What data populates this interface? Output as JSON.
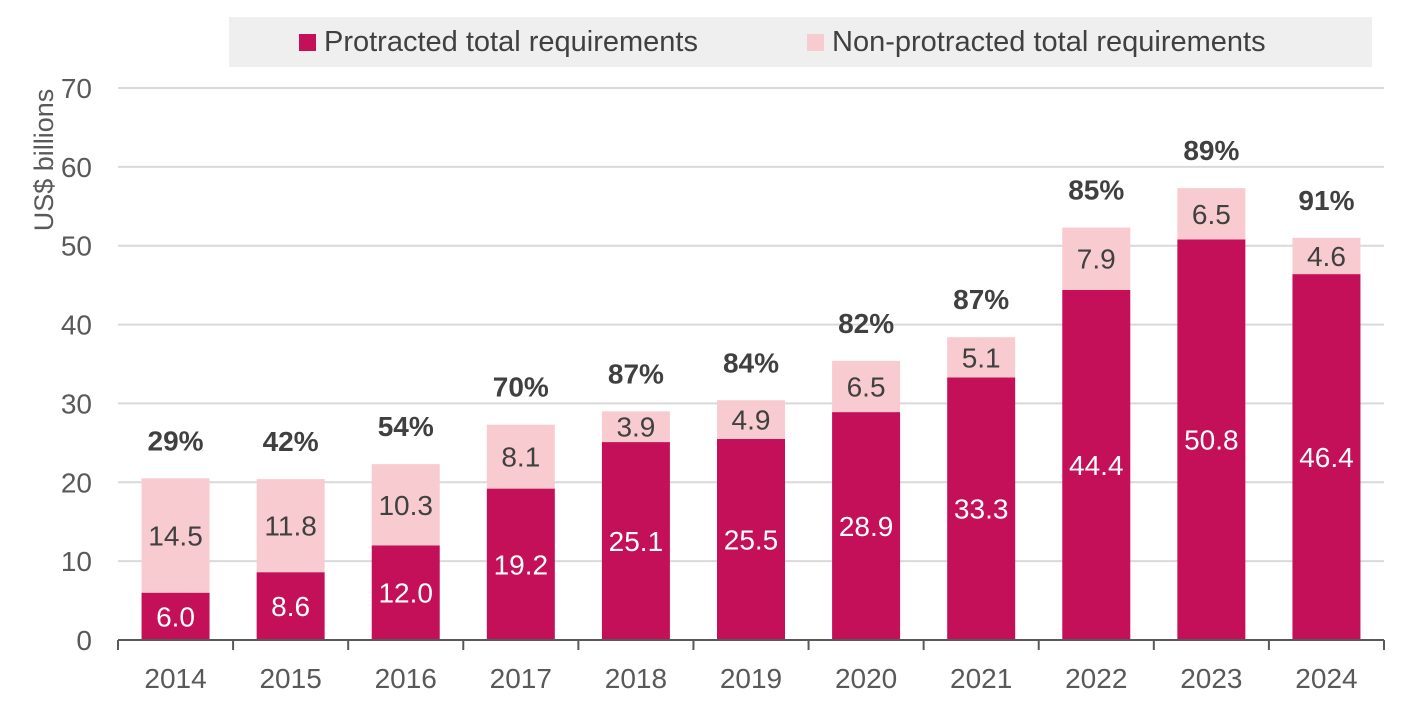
{
  "colors": {
    "protracted": "#c41058",
    "non_protracted": "#f8cbd0",
    "grid": "#d9d9d9",
    "axis": "#595959",
    "label_dark": "#404040",
    "label_light": "#ffffff"
  },
  "chart_data": {
    "type": "bar",
    "stacked": true,
    "categories": [
      "2014",
      "2015",
      "2016",
      "2017",
      "2018",
      "2019",
      "2020",
      "2021",
      "2022",
      "2023",
      "2024"
    ],
    "series": [
      {
        "name": "Protracted total requirements",
        "values": [
          6.0,
          8.6,
          12.0,
          19.2,
          25.1,
          25.5,
          28.9,
          33.3,
          44.4,
          50.8,
          46.4
        ]
      },
      {
        "name": "Non-protracted total requirements",
        "values": [
          14.5,
          11.8,
          10.3,
          8.1,
          3.9,
          4.9,
          6.5,
          5.1,
          7.9,
          6.5,
          4.6
        ]
      }
    ],
    "protracted_labels": [
      "6.0",
      "8.6",
      "12.0",
      "19.2",
      "25.1",
      "25.5",
      "28.9",
      "33.3",
      "44.4",
      "50.8",
      "46.4"
    ],
    "non_protracted_labels": [
      "14.5",
      "11.8",
      "10.3",
      "8.1",
      "3.9",
      "4.9",
      "6.5",
      "5.1",
      "7.9",
      "6.5",
      "4.6"
    ],
    "share_labels": [
      "29%",
      "42%",
      "54%",
      "70%",
      "87%",
      "84%",
      "82%",
      "87%",
      "85%",
      "89%",
      "91%"
    ],
    "ylabel": "US$ billions",
    "ylim": [
      0,
      70
    ],
    "yticks": [
      0,
      10,
      20,
      30,
      40,
      50,
      60,
      70
    ],
    "ytick_labels": [
      "0",
      "10",
      "20",
      "30",
      "40",
      "50",
      "60",
      "70"
    ],
    "grid": true,
    "legend_position": "top"
  }
}
